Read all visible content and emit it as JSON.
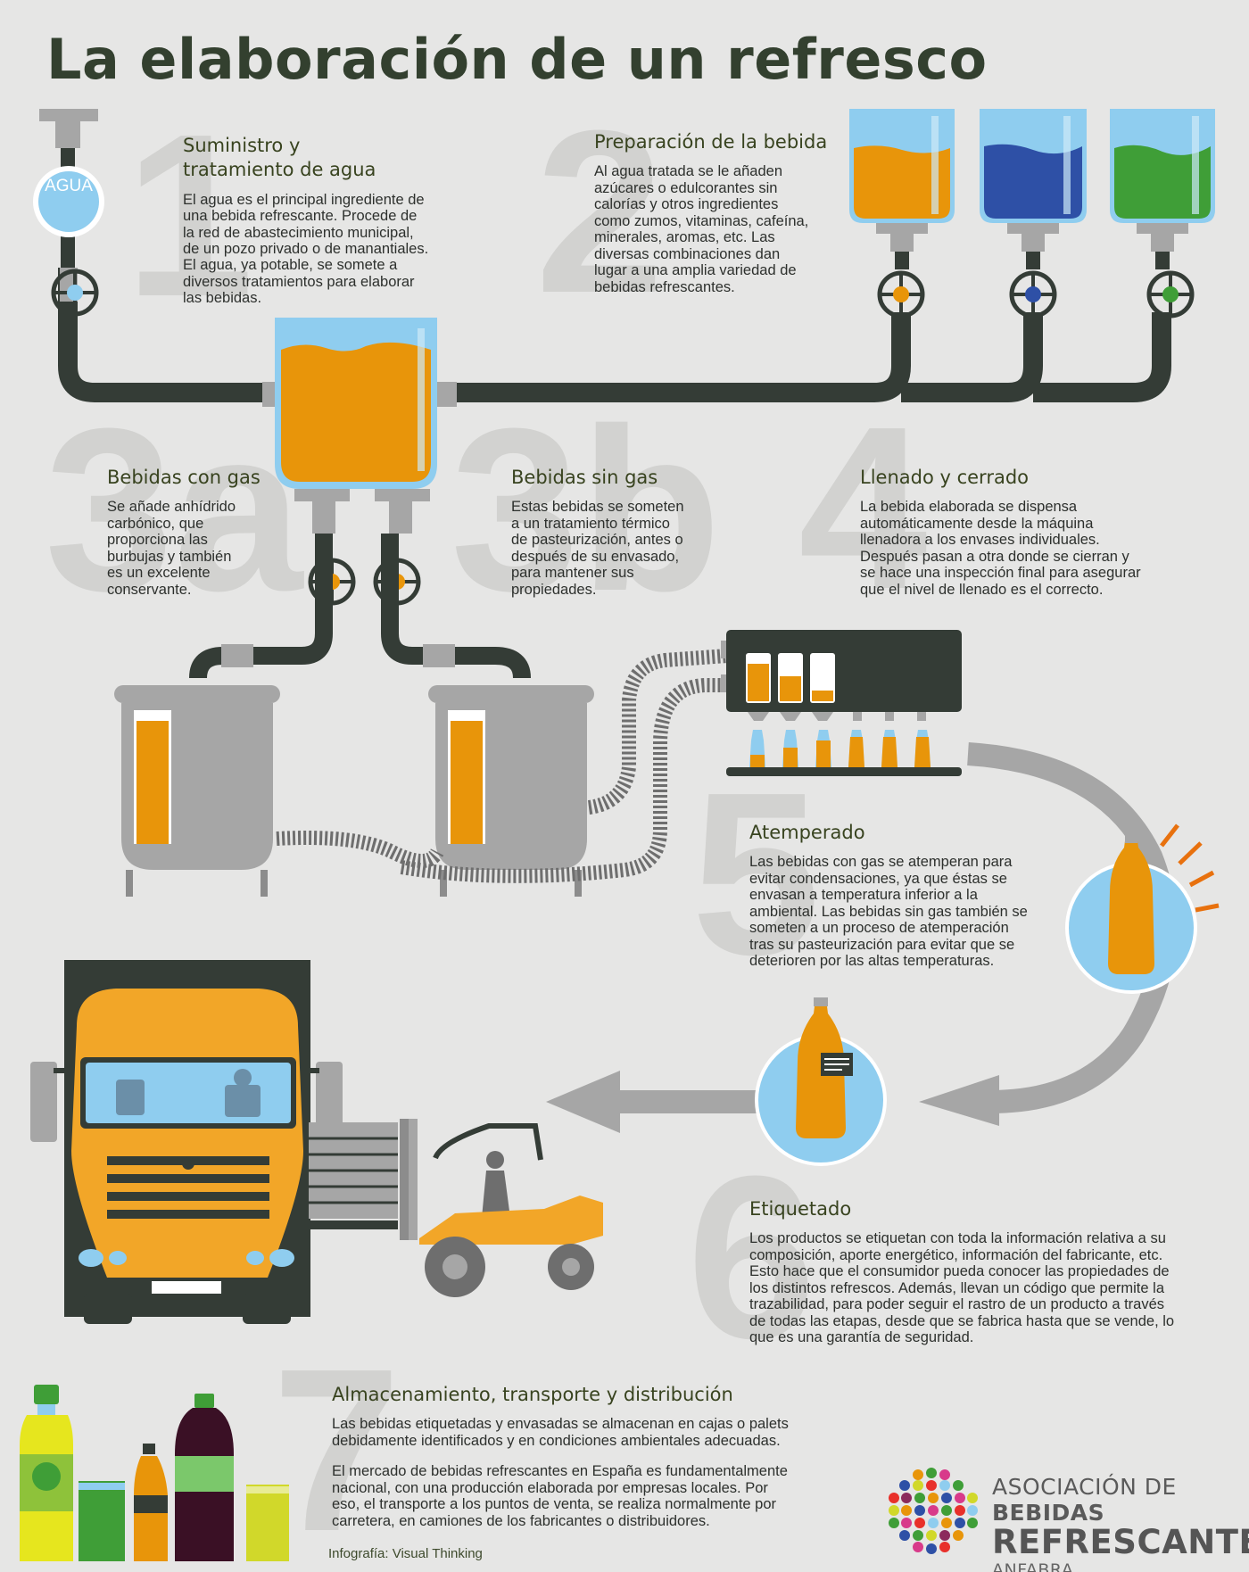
{
  "title": "La elaboración de un refresco",
  "agua_label": "AGUA",
  "steps": [
    {
      "num": "1",
      "title": "Suministro y\ntratamiento de agua",
      "text": "El agua es el principal ingrediente de\nuna bebida refrescante. Procede de\nla red de abastecimiento municipal,\nde un pozo privado o de manantiales.\nEl agua, ya potable, se somete a\ndiversos tratamientos para elaborar\nlas bebidas."
    },
    {
      "num": "2",
      "title": "Preparación de la bebida",
      "text": "Al agua tratada se le añaden\nazúcares o edulcorantes sin\ncalorías y otros ingredientes\ncomo zumos, vitaminas, cafeína,\nminerales, aromas, etc. Las\ndiversas combinaciones dan\nlugar a una amplia variedad de\nbebidas refrescantes."
    },
    {
      "num": "3a",
      "title": "Bebidas con gas",
      "text": "Se añade anhídrido\ncarbónico, que\nproporciona las\nburbujas y también\nes un excelente\nconservante."
    },
    {
      "num": "3b",
      "title": "Bebidas sin gas",
      "text": "Estas bebidas se someten\na un tratamiento térmico\nde pasteurización, antes o\ndespués de su envasado,\npara mantener sus\npropiedades."
    },
    {
      "num": "4",
      "title": "Llenado y cerrado",
      "text": "La bebida elaborada se dispensa\nautomáticamente desde la máquina\nllenadora a los envases individuales.\nDespués pasan a otra donde se cierran y\nse hace una inspección final para asegurar\nque el nivel de llenado es el correcto."
    },
    {
      "num": "5",
      "title": "Atemperado",
      "text": "Las bebidas con gas se atemperan para\nevitar condensaciones, ya que éstas se\nenvasan a temperatura inferior a la\nambiental. Las bebidas sin gas también se\nsometen a un proceso de atemperación\ntras su pasteurización para evitar que se\ndeterioren por las altas temperaturas."
    },
    {
      "num": "6",
      "title": "Etiquetado",
      "text": "Los productos se etiquetan con toda la información relativa a su\ncomposición, aporte energético, información del fabricante, etc.\nEsto hace que el consumidor pueda conocer las propiedades de\nlos distintos refrescos. Además, llevan un código que permite la\ntrazabilidad, para poder seguir el rastro de un producto a través\nde todas las etapas, desde que se fabrica hasta que se vende, lo\nque es una garantía de seguridad."
    },
    {
      "num": "7",
      "title": "Almacenamiento, transporte y distribución",
      "text": "Las bebidas etiquetadas y envasadas se almacenan en cajas o palets\ndebidamente identificados y en condiciones ambientales adecuadas.",
      "text2": "El mercado de bebidas refrescantes en España es fundamentalmente\nnacional, con una producción elaborada por empresas locales. Por\neso, el transporte a los puntos de venta, se realiza normalmente por\ncarretera, en camiones de los fabricantes o distribuidores."
    }
  ],
  "credit": "Infografía: Visual Thinking",
  "logo": {
    "line1_a": "ASOCIACIÓN DE ",
    "line1_b": "BEBIDAS",
    "line2": "REFRESCANTES",
    "line3": "ANFABRA"
  },
  "colors": {
    "background": "#e6e6e5",
    "pipe": "#343c36",
    "orange": "#e8950a",
    "blue": "#2e50a6",
    "green": "#3f9e37",
    "light_blue": "#8fcdef",
    "steel": "#a6a6a6",
    "title": "#33402f"
  }
}
